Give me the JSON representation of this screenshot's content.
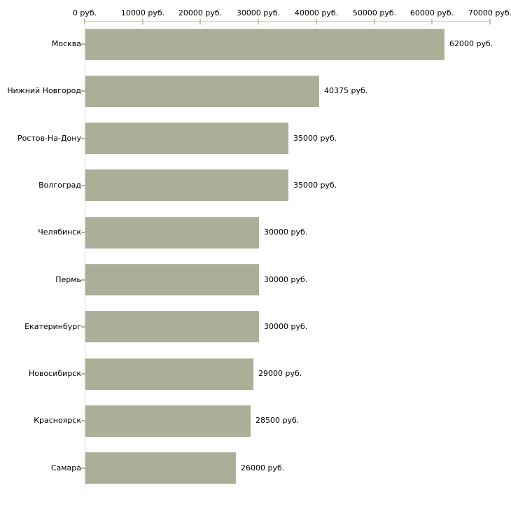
{
  "chart_data": {
    "type": "bar",
    "orientation": "horizontal",
    "title": "",
    "xlabel": "",
    "ylabel": "",
    "axis_position": "top",
    "grid": false,
    "legend": null,
    "unit_suffix": " руб.",
    "xlim": [
      0,
      70000
    ],
    "x_ticks": [
      0,
      10000,
      20000,
      30000,
      40000,
      50000,
      60000,
      70000
    ],
    "x_tick_labels": [
      "0 руб.",
      "10000 руб.",
      "20000 руб.",
      "30000 руб.",
      "40000 руб.",
      "50000 руб.",
      "60000 руб.",
      "70000 руб."
    ],
    "categories": [
      "Москва",
      "Нижний Новгород",
      "Ростов-На-Дону",
      "Волгоград",
      "Челябинск",
      "Пермь",
      "Екатеринбург",
      "Новосибирск",
      "Красноярск",
      "Самара"
    ],
    "values": [
      62000,
      40375,
      35000,
      35000,
      30000,
      30000,
      30000,
      29000,
      28500,
      26000
    ],
    "value_labels": [
      "62000 руб.",
      "40375 руб.",
      "35000 руб.",
      "35000 руб.",
      "30000 руб.",
      "30000 руб.",
      "30000 руб.",
      "29000 руб.",
      "28500 руб.",
      "26000 руб."
    ],
    "colors": {
      "bar_fill": "#aaaf97",
      "bar_top_edge": "#bbbfa9",
      "x_axis_line": "#d5d2b4",
      "x_tick": "#c9c59e",
      "y_axis_line": "#d7d7d7",
      "category_tick": "#b2af99",
      "text": "#000000",
      "background": "#ffffff"
    }
  }
}
